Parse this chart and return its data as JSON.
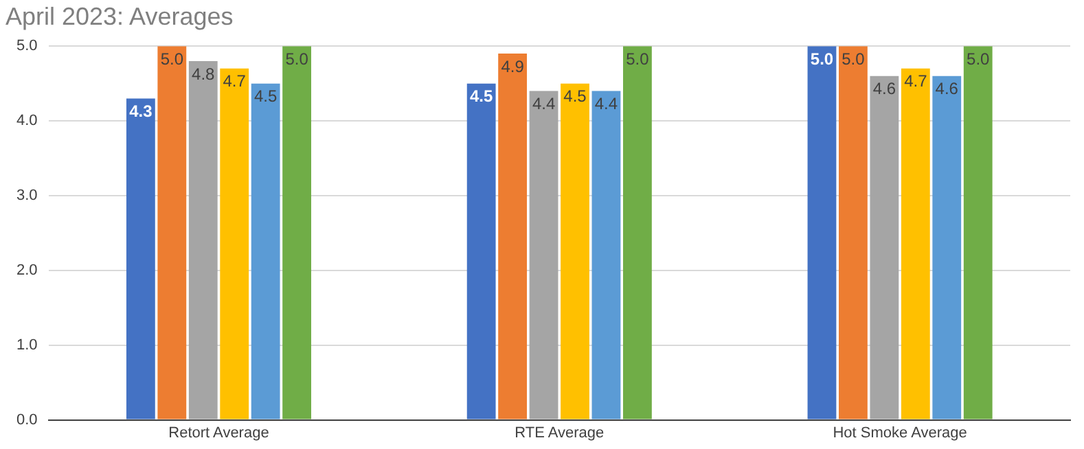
{
  "chart_data": {
    "type": "bar",
    "title": "April 2023: Averages",
    "categories": [
      "Retort Average",
      "RTE Average",
      "Hot Smoke Average"
    ],
    "series": [
      {
        "color": "#4472c4",
        "values": [
          4.3,
          4.5,
          5.0
        ],
        "value_labels": [
          "4.3",
          "4.5",
          "5.0"
        ]
      },
      {
        "color": "#ed7d31",
        "values": [
          5.0,
          4.9,
          5.0
        ],
        "value_labels": [
          "5.0",
          "4.9",
          "5.0"
        ]
      },
      {
        "color": "#a5a5a5",
        "values": [
          4.8,
          4.4,
          4.6
        ],
        "value_labels": [
          "4.8",
          "4.4",
          "4.6"
        ]
      },
      {
        "color": "#ffc000",
        "values": [
          4.7,
          4.5,
          4.7
        ],
        "value_labels": [
          "4.7",
          "4.5",
          "4.7"
        ]
      },
      {
        "color": "#5b9bd5",
        "values": [
          4.5,
          4.4,
          4.6
        ],
        "value_labels": [
          "4.5",
          "4.4",
          "4.6"
        ]
      },
      {
        "color": "#70ad47",
        "values": [
          5.0,
          5.0,
          5.0
        ],
        "value_labels": [
          "5.0",
          "5.0",
          "5.0"
        ]
      }
    ],
    "ylim": [
      0,
      5
    ],
    "yticks": [
      {
        "value": 0,
        "label": "0.0"
      },
      {
        "value": 1,
        "label": "1.0"
      },
      {
        "value": 2,
        "label": "2.0"
      },
      {
        "value": 3,
        "label": "3.0"
      },
      {
        "value": 4,
        "label": "4.0"
      },
      {
        "value": 5,
        "label": "5.0"
      }
    ],
    "grid": "y",
    "legend": false
  }
}
